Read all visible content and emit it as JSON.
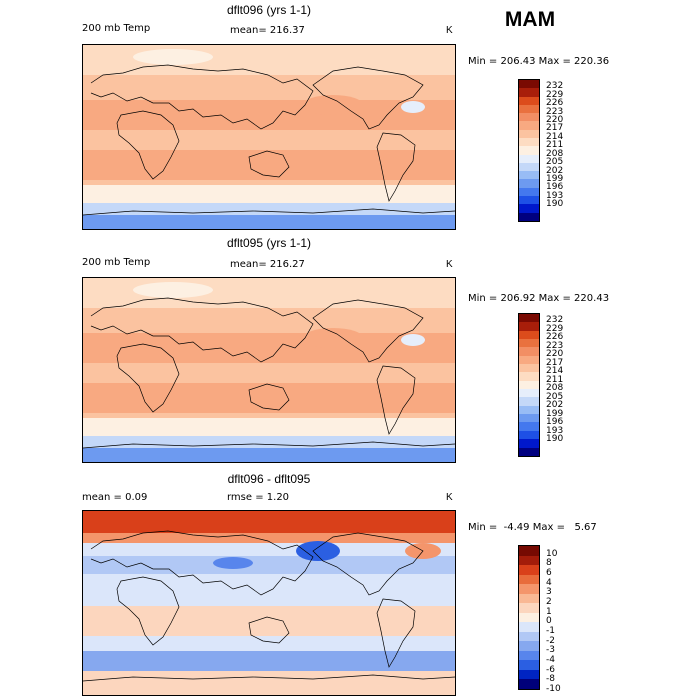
{
  "season": "MAM",
  "units": "K",
  "colors": {
    "temp": [
      "#000080",
      "#0018cc",
      "#1e50e6",
      "#4478ee",
      "#6d9af0",
      "#98bcf5",
      "#c4d8f8",
      "#e6eefb",
      "#fdf0e2",
      "#fddcc2",
      "#fbc3a0",
      "#f8a981",
      "#f28e64",
      "#e9713f",
      "#dc4c1c",
      "#a81e0a",
      "#7a0a02"
    ],
    "diff": [
      "#00007a",
      "#0024c2",
      "#2b5fe2",
      "#5885ec",
      "#86a8ef",
      "#b1c8f5",
      "#dbe6fa",
      "#fdf0e2",
      "#fcd6be",
      "#f9b894",
      "#f4956b",
      "#e86c3c",
      "#d9401a",
      "#a31c0a",
      "#760a02"
    ]
  },
  "chart_data": [
    {
      "type": "heatmap",
      "title": "dflt096 (yrs 1-1)",
      "variable": "200 mb Temp",
      "mean_text": "mean= 216.37",
      "units": "K",
      "minmax_text": "Min = 206.43 Max = 220.36",
      "min": 206.43,
      "max": 220.36,
      "colorbar_levels": [
        "232",
        "229",
        "226",
        "223",
        "220",
        "217",
        "214",
        "211",
        "208",
        "205",
        "202",
        "199",
        "196",
        "193",
        "190"
      ]
    },
    {
      "type": "heatmap",
      "title": "dflt095 (yrs 1-1)",
      "variable": "200 mb Temp",
      "mean_text": "mean= 216.27",
      "units": "K",
      "minmax_text": "Min = 206.92 Max = 220.43",
      "min": 206.92,
      "max": 220.43,
      "colorbar_levels": [
        "232",
        "229",
        "226",
        "223",
        "220",
        "217",
        "214",
        "211",
        "208",
        "205",
        "202",
        "199",
        "196",
        "193",
        "190"
      ]
    },
    {
      "type": "heatmap",
      "title": "dflt096 - dflt095",
      "mean_text": "mean =    0.09",
      "rmse_text": "rmse =    1.20",
      "units": "K",
      "minmax_text": "Min =  -4.49 Max =   5.67",
      "min": -4.49,
      "max": 5.67,
      "colorbar_levels": [
        "10",
        "8",
        "6",
        "4",
        "3",
        "2",
        "1",
        "0",
        "-1",
        "-2",
        "-3",
        "-4",
        "-6",
        "-8",
        "-10"
      ]
    }
  ]
}
